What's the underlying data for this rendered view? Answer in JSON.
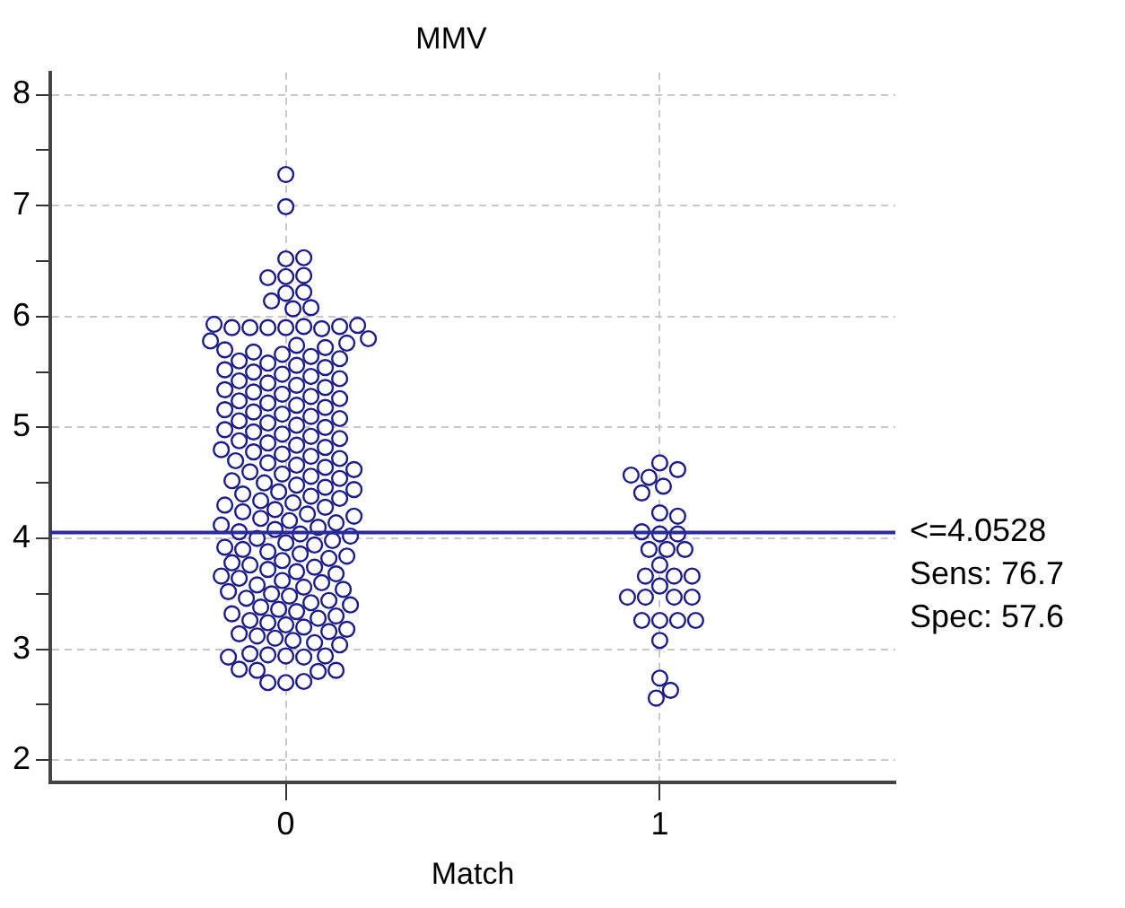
{
  "chart_data": {
    "type": "scatter",
    "title": "MMV",
    "xlabel": "Match",
    "categories": [
      "0",
      "1"
    ],
    "ylim": [
      1.8,
      8.2
    ],
    "yticks": [
      2,
      {
        "value": 2.5,
        "label": null
      },
      3,
      {
        "value": 3.5,
        "label": null
      },
      4,
      {
        "value": 4.5,
        "label": null
      },
      5,
      {
        "value": 5.5,
        "label": null
      },
      6,
      {
        "value": 6.5,
        "label": null
      },
      7,
      {
        "value": 7.5,
        "label": null
      },
      8
    ],
    "grid": true,
    "marker": "circle",
    "legend": false,
    "ref_lines": [
      {
        "axis": "y",
        "value": 4.0528,
        "label": "<=4.0528",
        "color": "#2a2a9a"
      }
    ],
    "annotations": [
      "Sens: 76.7",
      "Spec: 57.6"
    ],
    "series": [
      {
        "color": "#1c1c8c",
        "x": [
          "0",
          "0",
          "0",
          "0",
          "0",
          "0",
          "0",
          "0",
          "0",
          "0",
          "0",
          "0",
          "0",
          "0",
          "0",
          "0",
          "0",
          "0",
          "0",
          "0",
          "0",
          "0",
          "0",
          "0",
          "0",
          "0",
          "0",
          "0",
          "0",
          "0",
          "0",
          "0",
          "0",
          "0",
          "0",
          "0",
          "0",
          "0",
          "0",
          "0",
          "0",
          "0",
          "0",
          "0",
          "0",
          "0",
          "0",
          "0",
          "0",
          "0",
          "0",
          "0",
          "0",
          "0",
          "0",
          "0",
          "0",
          "0",
          "0",
          "0",
          "0",
          "0",
          "0",
          "0",
          "0",
          "0",
          "0",
          "0",
          "0",
          "0",
          "0",
          "0",
          "0",
          "0",
          "0",
          "0",
          "0",
          "0",
          "0",
          "0",
          "0",
          "0",
          "0",
          "0",
          "0",
          "0",
          "0",
          "0",
          "0",
          "0",
          "0",
          "0",
          "0",
          "0",
          "0",
          "0",
          "0",
          "0",
          "0",
          "0",
          "0",
          "0",
          "0",
          "0",
          "0",
          "0",
          "0",
          "0",
          "0",
          "0",
          "0",
          "0",
          "0",
          "0",
          "0",
          "0",
          "0",
          "0",
          "0",
          "0",
          "0",
          "0",
          "0",
          "0",
          "0",
          "0",
          "0",
          "0",
          "0",
          "0",
          "0",
          "0",
          "0",
          "0",
          "0",
          "0",
          "0",
          "0",
          "0",
          "0",
          "0",
          "0",
          "0",
          "0",
          "0",
          "0",
          "0",
          "0",
          "0",
          "0",
          "0",
          "0",
          "0",
          "0",
          "0",
          "0",
          "0",
          "0",
          "0",
          "0",
          "0",
          "0",
          "0",
          "0",
          "0",
          "0",
          "0",
          "0",
          "0",
          "0",
          "0",
          "0",
          "0",
          "1",
          "1",
          "1",
          "1",
          "1",
          "1",
          "1",
          "1",
          "1",
          "1",
          "1",
          "1",
          "1",
          "1",
          "1",
          "1",
          "1",
          "1",
          "1",
          "1",
          "1",
          "1",
          "1",
          "1",
          "1",
          "1",
          "1",
          "1",
          "1",
          "1",
          "1"
        ],
        "values": [
          7.28,
          6.99,
          6.52,
          6.53,
          6.36,
          6.37,
          6.35,
          6.21,
          6.22,
          6.14,
          6.07,
          6.08,
          5.9,
          5.91,
          5.9,
          5.89,
          5.9,
          5.91,
          5.9,
          5.92,
          5.93,
          2.7,
          2.71,
          2.7,
          2.81,
          2.8,
          2.82,
          2.81,
          2.94,
          2.93,
          2.95,
          2.94,
          2.96,
          2.93,
          3.04,
          3.06,
          3.08,
          3.1,
          3.12,
          3.14,
          3.16,
          3.18,
          3.2,
          3.22,
          3.24,
          3.26,
          3.28,
          3.3,
          3.32,
          3.34,
          3.36,
          3.38,
          3.4,
          3.42,
          3.44,
          3.46,
          3.48,
          3.5,
          3.52,
          3.54,
          3.56,
          3.58,
          3.6,
          3.62,
          3.64,
          3.66,
          3.68,
          3.7,
          3.72,
          3.74,
          3.76,
          3.78,
          3.8,
          3.82,
          3.84,
          3.86,
          3.88,
          3.9,
          3.92,
          3.94,
          3.96,
          3.98,
          4.0,
          4.02,
          4.04,
          4.06,
          4.08,
          4.1,
          4.12,
          4.14,
          4.16,
          4.18,
          4.2,
          4.22,
          4.24,
          4.26,
          4.28,
          4.3,
          4.32,
          4.34,
          4.36,
          4.38,
          4.4,
          4.42,
          4.44,
          4.46,
          4.48,
          4.5,
          4.52,
          4.54,
          4.56,
          4.58,
          4.6,
          4.62,
          4.64,
          4.66,
          4.68,
          4.7,
          4.72,
          4.74,
          4.76,
          4.78,
          4.8,
          4.82,
          4.84,
          4.86,
          4.88,
          4.9,
          4.92,
          4.94,
          4.96,
          4.98,
          5.0,
          5.02,
          5.04,
          5.06,
          5.08,
          5.1,
          5.12,
          5.14,
          5.16,
          5.18,
          5.2,
          5.22,
          5.24,
          5.26,
          5.28,
          5.3,
          5.32,
          5.34,
          5.36,
          5.38,
          5.4,
          5.42,
          5.44,
          5.46,
          5.48,
          5.5,
          5.52,
          5.54,
          5.56,
          5.58,
          5.6,
          5.62,
          5.64,
          5.66,
          5.68,
          5.7,
          5.72,
          5.74,
          5.76,
          5.78,
          5.8,
          4.68,
          4.62,
          4.55,
          4.57,
          4.47,
          4.41,
          4.23,
          4.2,
          4.04,
          4.06,
          4.04,
          3.9,
          3.9,
          3.9,
          3.76,
          3.66,
          3.66,
          3.66,
          3.57,
          3.47,
          3.47,
          3.47,
          3.47,
          3.26,
          3.26,
          3.26,
          3.26,
          3.08,
          2.74,
          2.63,
          2.56
        ]
      }
    ]
  }
}
